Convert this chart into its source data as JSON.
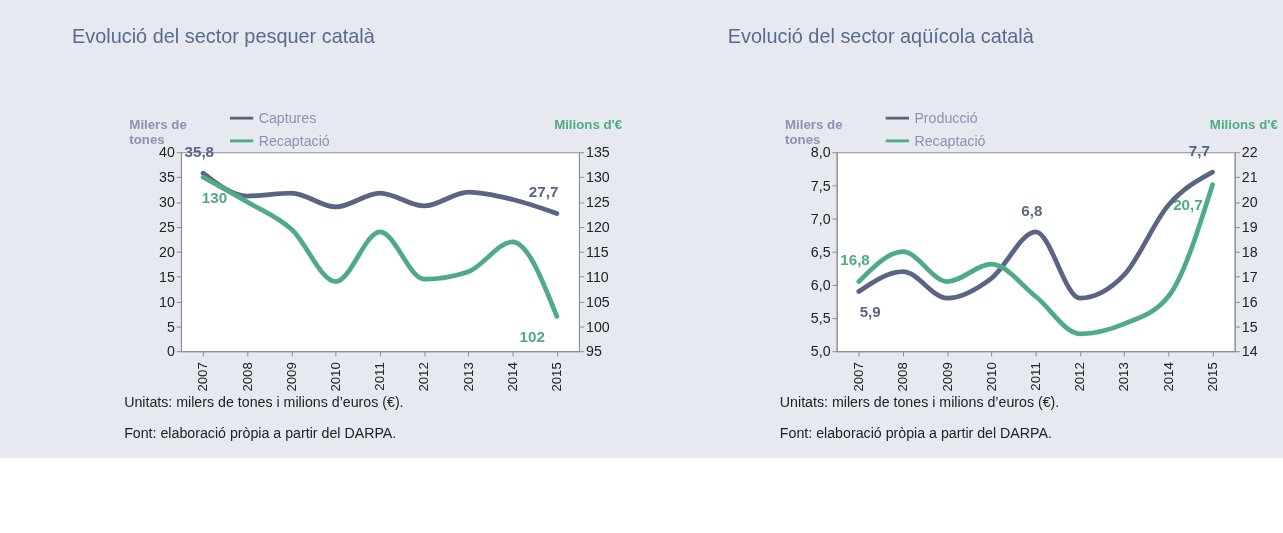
{
  "chart_data": [
    {
      "type": "line",
      "title": "Evolució del sector pesquer català",
      "categories": [
        "2007",
        "2008",
        "2009",
        "2010",
        "2011",
        "2012",
        "2013",
        "2014",
        "2015"
      ],
      "ylabel": "Milers de tones",
      "y2label": "Milions d'€",
      "ylim": [
        0,
        40
      ],
      "yticks": [
        0,
        5,
        10,
        15,
        20,
        25,
        30,
        35,
        40
      ],
      "y2lim": [
        95,
        135
      ],
      "y2ticks": [
        95,
        100,
        105,
        110,
        115,
        120,
        125,
        130,
        135
      ],
      "legend": "top",
      "grid": false,
      "line_style": "solid",
      "series": [
        {
          "name": "Captures",
          "color": "#5a6485",
          "values": [
            35.8,
            31.2,
            31.8,
            29.0,
            31.8,
            29.2,
            32.0,
            30.5,
            27.7
          ],
          "value_labels": [
            "35,8",
            null,
            null,
            null,
            null,
            null,
            null,
            null,
            "27,7"
          ]
        },
        {
          "name": "Recaptació",
          "color": "#4eab85",
          "axis": "y2",
          "values": [
            130,
            125,
            119.5,
            109,
            119,
            109.5,
            111,
            117,
            102
          ],
          "value_labels": [
            "130",
            null,
            null,
            null,
            null,
            null,
            null,
            null,
            "102"
          ]
        }
      ],
      "annotations": [
        "Unitats: milers de tones i milions d’euros (€).",
        "Font: elaboració pròpia a partir del DARPA."
      ]
    },
    {
      "type": "line",
      "title": "Evolució del sector aqüícola català",
      "categories": [
        "2007",
        "2008",
        "2009",
        "2010",
        "2011",
        "2012",
        "2013",
        "2014",
        "2015"
      ],
      "ylabel": "Milers de tones",
      "y2label": "Milions d'€",
      "ylim": [
        5.0,
        8.0
      ],
      "yticks": [
        {
          "value": 5.0,
          "label": "5,0"
        },
        {
          "value": 5.5,
          "label": "5,5"
        },
        {
          "value": 6.0,
          "label": "6,0"
        },
        {
          "value": 6.5,
          "label": "6,5"
        },
        {
          "value": 7.0,
          "label": "7,0"
        },
        {
          "value": 7.5,
          "label": "7,5"
        },
        {
          "value": 8.0,
          "label": "8,0"
        }
      ],
      "y2lim": [
        14,
        22
      ],
      "y2ticks": [
        14,
        15,
        16,
        17,
        18,
        19,
        20,
        21,
        22
      ],
      "legend": "top",
      "grid": false,
      "line_style": "solid",
      "series": [
        {
          "name": "Producció",
          "color": "#5a6485",
          "values": [
            5.9,
            6.2,
            5.8,
            6.1,
            6.8,
            5.8,
            6.15,
            7.2,
            7.7
          ],
          "value_labels": [
            "5,9",
            null,
            null,
            null,
            "6,8",
            null,
            null,
            null,
            "7,7"
          ]
        },
        {
          "name": "Recaptació",
          "color": "#4eab85",
          "axis": "y2",
          "values": [
            16.8,
            18.0,
            16.8,
            17.5,
            16.2,
            14.7,
            15.1,
            16.2,
            20.7
          ],
          "value_labels": [
            "16,8",
            null,
            null,
            null,
            null,
            null,
            null,
            null,
            "20,7"
          ]
        }
      ],
      "annotations": [
        "Unitats: milers de tones i milions d’euros (€).",
        "Font: elaboració pròpia a partir del DARPA."
      ]
    }
  ]
}
